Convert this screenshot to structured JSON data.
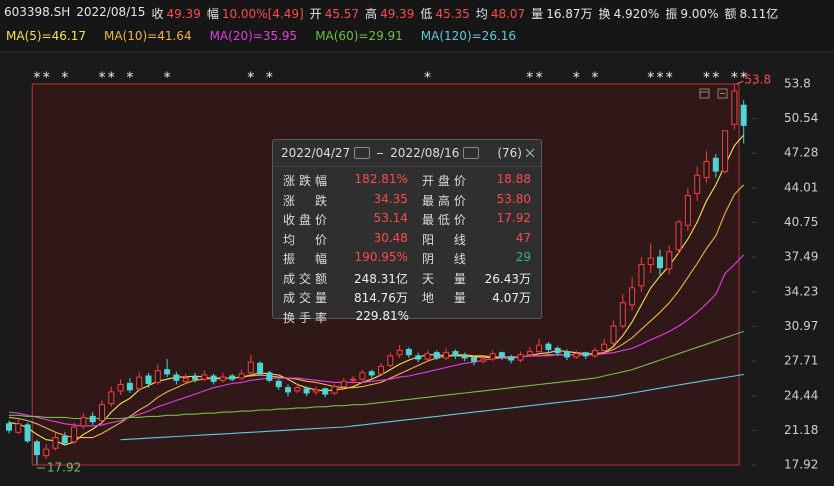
{
  "header": {
    "code": "603398.SH",
    "date": "2022/08/15",
    "items": [
      {
        "label": "收",
        "value": "49.39",
        "color": "#ff4a4a"
      },
      {
        "label": "幅",
        "value": "10.00%[4.49]",
        "color": "#ff4a4a"
      },
      {
        "label": "开",
        "value": "45.57",
        "color": "#ff4a4a"
      },
      {
        "label": "高",
        "value": "49.39",
        "color": "#ff4a4a"
      },
      {
        "label": "低",
        "value": "45.35",
        "color": "#ff4a4a"
      },
      {
        "label": "均",
        "value": "48.07",
        "color": "#ff4a4a"
      },
      {
        "label": "量",
        "value": "16.87万",
        "color": "#e6e6e6"
      },
      {
        "label": "换",
        "value": "4.920%",
        "color": "#e6e6e6"
      },
      {
        "label": "振",
        "value": "9.00%",
        "color": "#e6e6e6"
      },
      {
        "label": "额",
        "value": "8.11亿",
        "color": "#e6e6e6"
      }
    ]
  },
  "chart_data": {
    "type": "candlestick",
    "up_color": "#ff3c3c",
    "down_color": "#4fd3d3",
    "ylim": [
      17.92,
      53.8
    ],
    "yticks": [
      53.8,
      50.54,
      47.28,
      44.01,
      40.75,
      37.49,
      34.23,
      30.97,
      27.71,
      24.44,
      21.18,
      17.92
    ],
    "open": [
      21.8,
      21.0,
      21.7,
      20.1,
      18.8,
      19.5,
      20.6,
      20.1,
      21.6,
      22.5,
      22.1,
      23.7,
      24.9,
      25.6,
      25.1,
      26.3,
      25.7,
      26.9,
      26.4,
      25.8,
      26.2,
      26.0,
      26.3,
      25.9,
      26.3,
      26.1,
      26.6,
      27.5,
      26.6,
      25.8,
      25.2,
      24.9,
      25.1,
      24.8,
      25.1,
      24.7,
      25.3,
      25.9,
      26.0,
      26.7,
      26.5,
      27.3,
      28.3,
      28.8,
      28.2,
      27.9,
      28.5,
      28.0,
      28.6,
      28.2,
      28.0,
      27.7,
      27.9,
      28.5,
      28.1,
      27.8,
      28.3,
      28.6,
      29.3,
      28.9,
      28.6,
      28.1,
      28.5,
      28.2,
      28.7,
      29.4,
      31.0,
      33.0,
      34.8,
      36.8,
      37.5,
      36.4,
      38.2,
      40.5,
      43.5,
      45.0,
      46.8,
      45.57,
      50.0,
      51.8
    ],
    "high": [
      22.1,
      22.3,
      21.9,
      20.3,
      19.9,
      20.9,
      21.0,
      21.9,
      22.8,
      22.9,
      24.0,
      25.3,
      26.0,
      26.1,
      26.7,
      26.6,
      27.4,
      27.9,
      26.7,
      26.5,
      26.6,
      26.8,
      26.5,
      26.6,
      26.5,
      26.9,
      28.3,
      27.7,
      26.8,
      26.0,
      25.5,
      25.6,
      25.3,
      25.3,
      25.2,
      25.6,
      26.1,
      26.3,
      26.9,
      26.9,
      27.5,
      28.5,
      29.2,
      29.0,
      28.5,
      28.7,
      28.7,
      28.9,
      28.8,
      28.5,
      28.2,
      28.2,
      28.7,
      28.6,
      28.3,
      28.6,
      29.0,
      29.8,
      29.5,
      29.1,
      28.8,
      28.7,
      28.6,
      29.0,
      29.8,
      31.5,
      34.0,
      35.6,
      37.5,
      38.8,
      38.2,
      38.6,
      41.0,
      44.0,
      46.0,
      47.5,
      47.2,
      49.39,
      53.8,
      52.3
    ],
    "low": [
      20.9,
      20.8,
      20.0,
      17.92,
      18.5,
      19.3,
      19.8,
      19.9,
      21.3,
      21.7,
      21.9,
      23.4,
      24.5,
      24.7,
      24.9,
      25.2,
      25.5,
      26.2,
      25.5,
      25.6,
      25.7,
      25.8,
      25.5,
      25.7,
      25.8,
      25.9,
      26.4,
      26.3,
      25.7,
      25.0,
      24.4,
      24.7,
      24.4,
      24.5,
      24.3,
      24.5,
      25.1,
      25.6,
      25.8,
      26.1,
      26.3,
      27.1,
      28.0,
      28.0,
      27.6,
      27.7,
      27.8,
      27.8,
      27.9,
      27.7,
      27.3,
      27.5,
      27.7,
      27.8,
      27.5,
      27.6,
      28.1,
      28.4,
      28.5,
      28.2,
      27.8,
      27.9,
      27.9,
      28.0,
      28.5,
      29.2,
      30.8,
      32.5,
      34.2,
      36.0,
      35.8,
      35.9,
      37.8,
      40.0,
      42.8,
      44.5,
      45.0,
      45.35,
      49.5,
      48.2
    ],
    "close": [
      21.2,
      21.8,
      20.2,
      18.9,
      19.4,
      20.5,
      20.0,
      21.5,
      22.4,
      22.0,
      23.6,
      24.8,
      25.5,
      25.0,
      26.2,
      25.6,
      26.8,
      26.5,
      25.9,
      26.1,
      26.0,
      26.4,
      25.8,
      26.2,
      26.0,
      26.5,
      27.6,
      26.5,
      25.9,
      25.3,
      24.8,
      25.2,
      24.7,
      25.0,
      24.6,
      25.3,
      25.8,
      26.0,
      26.6,
      26.4,
      27.2,
      28.2,
      28.7,
      28.3,
      27.9,
      28.4,
      28.0,
      28.5,
      28.2,
      28.0,
      27.7,
      27.9,
      28.4,
      28.1,
      27.8,
      28.3,
      28.6,
      29.2,
      28.8,
      28.5,
      28.1,
      28.4,
      28.2,
      28.7,
      29.3,
      31.0,
      33.2,
      34.6,
      36.8,
      37.4,
      36.5,
      38.0,
      40.8,
      43.3,
      45.2,
      46.5,
      45.6,
      49.39,
      53.14,
      49.9
    ],
    "series": [
      {
        "name": "MA(5)=46.17",
        "color": "#f2e25a",
        "values": [
          21.9,
          21.8,
          21.4,
          20.8,
          20.3,
          20.2,
          19.8,
          20.1,
          20.8,
          21.3,
          21.9,
          22.9,
          23.7,
          24.2,
          25.0,
          25.4,
          25.8,
          26.0,
          26.2,
          26.2,
          26.3,
          26.2,
          26.0,
          26.1,
          26.1,
          26.2,
          26.4,
          26.6,
          26.5,
          26.4,
          26.0,
          25.5,
          25.2,
          25.0,
          24.9,
          25.0,
          25.1,
          25.3,
          25.7,
          26.0,
          26.4,
          26.9,
          27.4,
          27.8,
          28.1,
          28.3,
          28.3,
          28.2,
          28.2,
          28.2,
          28.1,
          28.1,
          28.0,
          28.0,
          28.0,
          28.1,
          28.2,
          28.4,
          28.5,
          28.7,
          28.6,
          28.5,
          28.4,
          28.4,
          28.5,
          29.1,
          30.1,
          31.4,
          33.0,
          34.6,
          35.7,
          36.7,
          37.9,
          39.2,
          40.8,
          42.8,
          44.3,
          46.17,
          48.0,
          49.0
        ]
      },
      {
        "name": "MA(10)=41.64",
        "color": "#f0b24a",
        "values": [
          22.4,
          22.3,
          22.1,
          21.8,
          21.4,
          21.0,
          20.7,
          20.5,
          20.5,
          20.5,
          20.9,
          21.4,
          21.9,
          22.5,
          23.1,
          23.6,
          24.3,
          24.8,
          25.2,
          25.6,
          25.9,
          26.0,
          26.1,
          26.1,
          26.1,
          26.2,
          26.3,
          26.4,
          26.3,
          26.2,
          26.1,
          26.0,
          25.8,
          25.7,
          25.5,
          25.3,
          25.2,
          25.2,
          25.3,
          25.5,
          25.7,
          26.1,
          26.5,
          26.9,
          27.3,
          27.7,
          28.0,
          28.2,
          28.3,
          28.3,
          28.2,
          28.2,
          28.1,
          28.1,
          28.1,
          28.1,
          28.2,
          28.2,
          28.3,
          28.3,
          28.3,
          28.3,
          28.3,
          28.4,
          28.5,
          28.8,
          29.3,
          29.9,
          30.7,
          31.5,
          32.3,
          33.2,
          34.3,
          35.6,
          36.9,
          38.3,
          39.5,
          41.64,
          43.4,
          44.3
        ]
      },
      {
        "name": "MA(20)=35.95",
        "color": "#e33de3",
        "values": [
          22.9,
          22.8,
          22.6,
          22.4,
          22.2,
          22.0,
          21.8,
          21.7,
          21.6,
          21.6,
          21.7,
          21.9,
          22.1,
          22.4,
          22.7,
          23.0,
          23.4,
          23.7,
          24.0,
          24.3,
          24.6,
          24.9,
          25.2,
          25.4,
          25.6,
          25.7,
          25.9,
          26.0,
          26.1,
          26.1,
          26.1,
          26.1,
          26.0,
          25.9,
          25.8,
          25.7,
          25.7,
          25.7,
          25.7,
          25.8,
          25.9,
          26.0,
          26.2,
          26.3,
          26.5,
          26.7,
          26.9,
          27.1,
          27.3,
          27.5,
          27.6,
          27.8,
          27.9,
          28.0,
          28.1,
          28.1,
          28.2,
          28.2,
          28.2,
          28.3,
          28.3,
          28.3,
          28.3,
          28.3,
          28.4,
          28.5,
          28.7,
          28.9,
          29.3,
          29.7,
          30.1,
          30.5,
          31.0,
          31.6,
          32.3,
          33.1,
          34.0,
          35.95,
          36.8,
          37.7
        ]
      },
      {
        "name": "MA(60)=29.91",
        "color": "#6fbf45",
        "values": [
          22.6,
          22.6,
          22.5,
          22.5,
          22.4,
          22.4,
          22.4,
          22.3,
          22.3,
          22.3,
          22.3,
          22.3,
          22.3,
          22.4,
          22.4,
          22.5,
          22.5,
          22.6,
          22.6,
          22.7,
          22.7,
          22.8,
          22.8,
          22.9,
          22.9,
          23.0,
          23.0,
          23.1,
          23.1,
          23.2,
          23.2,
          23.3,
          23.3,
          23.4,
          23.4,
          23.5,
          23.5,
          23.6,
          23.6,
          23.7,
          23.8,
          23.9,
          24.0,
          24.1,
          24.2,
          24.3,
          24.4,
          24.5,
          24.6,
          24.7,
          24.8,
          24.9,
          25.0,
          25.1,
          25.2,
          25.3,
          25.4,
          25.5,
          25.6,
          25.7,
          25.8,
          25.9,
          26.0,
          26.1,
          26.3,
          26.5,
          26.7,
          26.9,
          27.2,
          27.5,
          27.8,
          28.1,
          28.4,
          28.7,
          29.0,
          29.3,
          29.6,
          29.91,
          30.2,
          30.5
        ]
      },
      {
        "name": "MA(120)=26.16",
        "color": "#5fc9dc",
        "values": [
          null,
          null,
          null,
          null,
          null,
          null,
          null,
          null,
          null,
          null,
          null,
          null,
          20.3,
          20.35,
          20.4,
          20.45,
          20.5,
          20.55,
          20.6,
          20.65,
          20.7,
          20.75,
          20.8,
          20.85,
          20.9,
          20.95,
          21.0,
          21.05,
          21.1,
          21.15,
          21.2,
          21.25,
          21.3,
          21.35,
          21.4,
          21.45,
          21.5,
          21.6,
          21.7,
          21.8,
          21.9,
          22.0,
          22.1,
          22.2,
          22.3,
          22.4,
          22.5,
          22.6,
          22.7,
          22.8,
          22.9,
          23.0,
          23.1,
          23.2,
          23.3,
          23.4,
          23.5,
          23.6,
          23.7,
          23.8,
          23.9,
          24.0,
          24.1,
          24.2,
          24.3,
          24.4,
          24.55,
          24.7,
          24.85,
          25.0,
          25.15,
          25.3,
          25.45,
          25.6,
          25.75,
          25.9,
          26.03,
          26.16,
          26.3,
          26.45
        ]
      }
    ],
    "marker_text": "*",
    "marker_indices": [
      3,
      4,
      6,
      10,
      11,
      13,
      17,
      26,
      28,
      45,
      56,
      57,
      61,
      63,
      69,
      70,
      71,
      75,
      76,
      78,
      79
    ],
    "max_label": "53.8",
    "min_label": "17.92"
  },
  "popup": {
    "start": "2022/04/27",
    "end": "2022/08/16",
    "count": "(76)",
    "rows": [
      [
        {
          "label": "涨跌幅",
          "value": "182.81%",
          "color": "#ff4a4a"
        },
        {
          "label": "开盘价",
          "value": "18.88",
          "color": "#ff4a4a"
        }
      ],
      [
        {
          "label": "涨 跌",
          "value": "34.35",
          "color": "#ff4a4a"
        },
        {
          "label": "最高价",
          "value": "53.80",
          "color": "#ff4a4a"
        }
      ],
      [
        {
          "label": "收盘价",
          "value": "53.14",
          "color": "#ff4a4a"
        },
        {
          "label": "最低价",
          "value": "17.92",
          "color": "#ff4a4a"
        }
      ],
      [
        {
          "label": "均 价",
          "value": "30.48",
          "color": "#ff4a4a"
        },
        {
          "label": "阳 线",
          "value": "47",
          "color": "#ff4a4a"
        }
      ],
      [
        {
          "label": "振 幅",
          "value": "190.95%",
          "color": "#ff4a4a"
        },
        {
          "label": "阴 线",
          "value": "29",
          "color": "#3cb371"
        }
      ],
      [
        {
          "label": "成交额",
          "value": "248.31亿",
          "color": "#eeeeee"
        },
        {
          "label": "天 量",
          "value": "26.43万",
          "color": "#eeeeee"
        }
      ],
      [
        {
          "label": "成交量",
          "value": "814.76万",
          "color": "#eeeeee"
        },
        {
          "label": "地 量",
          "value": "4.07万",
          "color": "#eeeeee"
        }
      ],
      [
        {
          "label": "换手率",
          "value": "229.81%",
          "color": "#eeeeee"
        }
      ]
    ]
  }
}
